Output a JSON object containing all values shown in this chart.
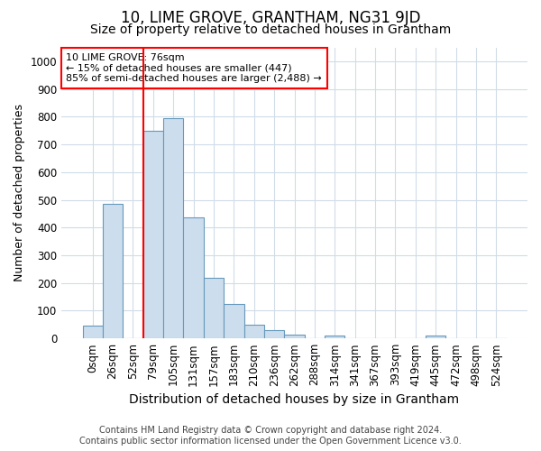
{
  "title": "10, LIME GROVE, GRANTHAM, NG31 9JD",
  "subtitle": "Size of property relative to detached houses in Grantham",
  "xlabel": "Distribution of detached houses by size in Grantham",
  "ylabel": "Number of detached properties",
  "footer_line1": "Contains HM Land Registry data © Crown copyright and database right 2024.",
  "footer_line2": "Contains public sector information licensed under the Open Government Licence v3.0.",
  "bar_labels": [
    "0sqm",
    "26sqm",
    "52sqm",
    "79sqm",
    "105sqm",
    "131sqm",
    "157sqm",
    "183sqm",
    "210sqm",
    "236sqm",
    "262sqm",
    "288sqm",
    "314sqm",
    "341sqm",
    "367sqm",
    "393sqm",
    "419sqm",
    "445sqm",
    "472sqm",
    "498sqm",
    "524sqm"
  ],
  "bar_values": [
    45,
    485,
    0,
    750,
    795,
    435,
    220,
    125,
    50,
    30,
    15,
    0,
    10,
    0,
    0,
    0,
    0,
    10,
    0,
    0,
    0
  ],
  "bar_color": "#ccdded",
  "bar_edgecolor": "#6699bb",
  "marker_color": "red",
  "red_line_x": 3,
  "ylim": [
    0,
    1050
  ],
  "yticks": [
    0,
    100,
    200,
    300,
    400,
    500,
    600,
    700,
    800,
    900,
    1000
  ],
  "annotation_title": "10 LIME GROVE: 76sqm",
  "annotation_line1": "← 15% of detached houses are smaller (447)",
  "annotation_line2": "85% of semi-detached houses are larger (2,488) →",
  "annotation_box_color": "white",
  "annotation_box_edgecolor": "red",
  "bg_color": "#ffffff",
  "plot_bg_color": "#ffffff",
  "grid_color": "#d0dce8",
  "title_fontsize": 12,
  "subtitle_fontsize": 10,
  "ylabel_fontsize": 9,
  "xlabel_fontsize": 10,
  "tick_fontsize": 8.5,
  "footer_fontsize": 7
}
